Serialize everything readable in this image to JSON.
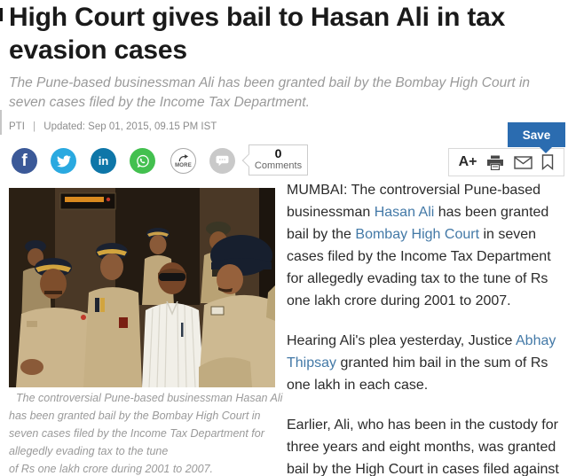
{
  "article": {
    "headline": "High Court gives bail to Hasan Ali in tax evasion cases",
    "subtitle": "The Pune-based businessman Ali has been granted bail by the Bombay High Court in seven cases filed by the Income Tax Department.",
    "byline": {
      "source": "PTI",
      "separator": "|",
      "updated": "Updated: Sep 01, 2015, 09.15 PM IST"
    },
    "paragraphs": [
      {
        "segments": [
          {
            "text": "MUMBAI: The controversial Pune-based businessman "
          },
          {
            "text": "Hasan Ali",
            "link": true
          },
          {
            "text": " has been granted bail by the "
          },
          {
            "text": "Bombay High Court",
            "link": true
          },
          {
            "text": " in seven cases filed by the Income Tax Department for allegedly evading tax to the tune of Rs one lakh crore during 2001 to 2007."
          }
        ]
      },
      {
        "segments": [
          {
            "text": "Hearing Ali's plea yesterday, Justice "
          },
          {
            "text": "Abhay Thipsay",
            "link": true
          },
          {
            "text": " granted him bail in the sum of Rs one lakh in each case."
          }
        ]
      },
      {
        "segments": [
          {
            "text": "Earlier, Ali, who has been in the custody for three years and eight months, was granted bail by the High Court in cases filed against"
          }
        ]
      }
    ]
  },
  "photo": {
    "caption_lines": [
      "The controversial Pune-based businessman Hasan Ali",
      "has been granted bail by the Bombay High Court in",
      "seven cases filed by the Income Tax Department for",
      "allegedly evading tax to the tune",
      "of Rs one lakh crore during 2001 to 2007."
    ]
  },
  "share": {
    "facebook_letter": "f",
    "linkedin_letters": "in",
    "more_label": "MORE",
    "comments": {
      "count": "0",
      "label": "Comments"
    }
  },
  "toolbar": {
    "font_size_label": "A+",
    "save_label": "Save"
  },
  "colors": {
    "facebook": "#3b5998",
    "twitter": "#2aa9e0",
    "linkedin": "#0e76a8",
    "whatsapp": "#43c04f",
    "saveblue": "#2b6cb0",
    "linkblue": "#4379a7",
    "headline": "#1a1a1a",
    "bodytext": "#2b2b2b",
    "muted": "#9a9a9a"
  }
}
